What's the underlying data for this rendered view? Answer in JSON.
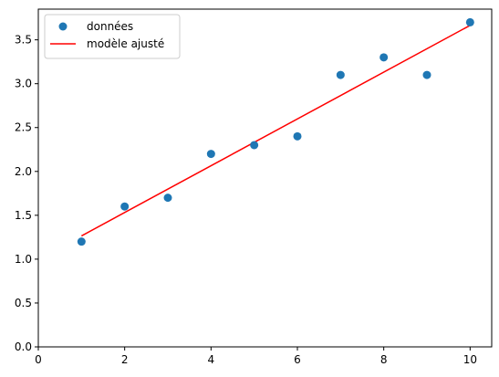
{
  "chart_data": {
    "type": "scatter",
    "title": "",
    "xlabel": "",
    "ylabel": "",
    "xlim": [
      0,
      10.5
    ],
    "ylim": [
      0,
      3.85
    ],
    "xticks": [
      0,
      2,
      4,
      6,
      8,
      10
    ],
    "xtick_labels": [
      "0",
      "2",
      "4",
      "6",
      "8",
      "10"
    ],
    "yticks": [
      0.0,
      0.5,
      1.0,
      1.5,
      2.0,
      2.5,
      3.0,
      3.5
    ],
    "ytick_labels": [
      "0.0",
      "0.5",
      "1.0",
      "1.5",
      "2.0",
      "2.5",
      "3.0",
      "3.5"
    ],
    "grid": false,
    "legend_position": "top-left",
    "series": [
      {
        "name": "données",
        "kind": "points",
        "color": "#1f77b4",
        "x": [
          1,
          2,
          3,
          4,
          5,
          6,
          7,
          8,
          9,
          10
        ],
        "y": [
          1.2,
          1.6,
          1.7,
          2.2,
          2.3,
          2.4,
          3.1,
          3.3,
          3.1,
          3.7
        ]
      },
      {
        "name": "modèle ajusté",
        "kind": "line",
        "color": "#ff0000",
        "x": [
          1,
          10
        ],
        "y": [
          1.265,
          3.665
        ]
      }
    ]
  }
}
